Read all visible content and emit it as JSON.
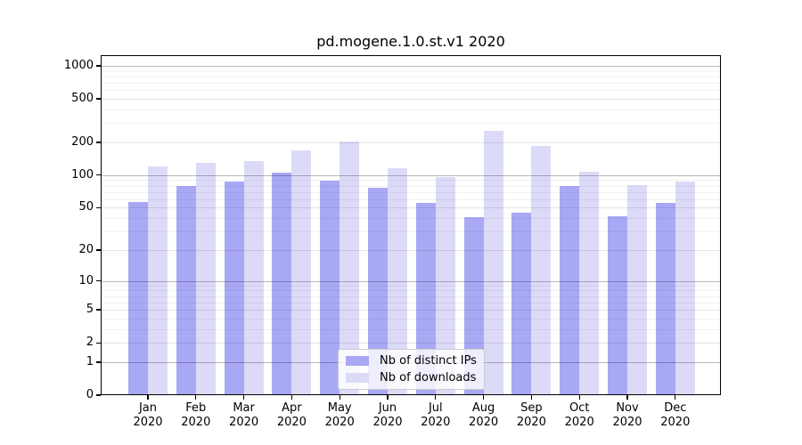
{
  "chart_data": {
    "type": "bar",
    "title": "pd.mogene.1.0.st.v1 2020",
    "categories": [
      "Jan",
      "Feb",
      "Mar",
      "Apr",
      "May",
      "Jun",
      "Jul",
      "Aug",
      "Sep",
      "Oct",
      "Nov",
      "Dec"
    ],
    "x_year": "2020",
    "series": [
      {
        "name": "Nb of distinct IPs",
        "color": "#a8a8f5",
        "values": [
          56,
          79,
          87,
          105,
          89,
          77,
          55,
          41,
          45,
          79,
          42,
          55
        ]
      },
      {
        "name": "Nb of downloads",
        "color": "#dbdbf8",
        "values": [
          120,
          130,
          134,
          168,
          203,
          116,
          96,
          255,
          186,
          107,
          81,
          87
        ]
      }
    ],
    "y_scale": "log1p",
    "ylim": [
      0,
      1250
    ],
    "y_ticks": [
      0,
      1,
      2,
      5,
      10,
      20,
      50,
      100,
      200,
      500,
      1000
    ],
    "y_decade_ticks": [
      1,
      10,
      100,
      1000
    ],
    "y_minor_ticks": [
      3,
      4,
      6,
      7,
      8,
      9,
      30,
      40,
      60,
      70,
      80,
      90,
      300,
      400,
      600,
      700,
      800,
      900
    ],
    "grid": true,
    "legend_position": "lower center",
    "frame_color": "#000000",
    "grid_major_color": "#b8b8b8",
    "grid_mid_color": "#e5e5e5",
    "grid_minor_color": "#f2f2f2"
  }
}
